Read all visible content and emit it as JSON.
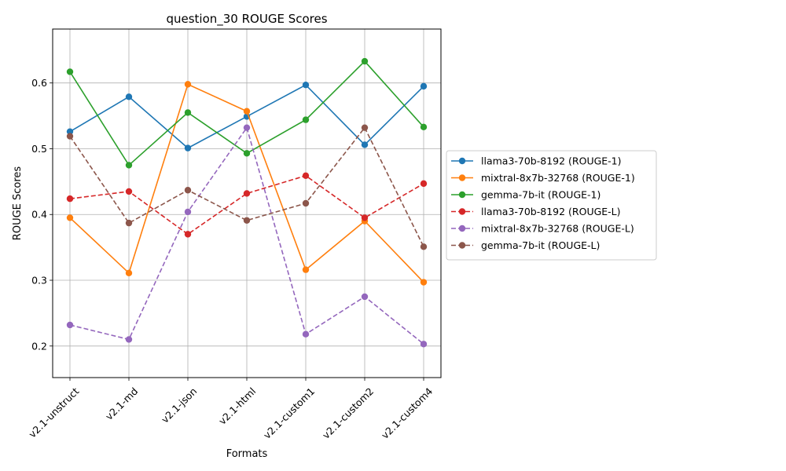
{
  "chart_data": {
    "type": "line",
    "title": "question_30 ROUGE Scores",
    "xlabel": "Formats",
    "ylabel": "ROUGE Scores",
    "categories": [
      "v2.1-unstruct",
      "v2.1-md",
      "v2.1-json",
      "v2.1-html",
      "v2.1-custom1",
      "v2.1-custom2",
      "v2.1-custom4"
    ],
    "ylim": [
      0.152,
      0.682
    ],
    "yticks": [
      0.2,
      0.3,
      0.4,
      0.5,
      0.6
    ],
    "ytick_labels": [
      "0.2",
      "0.3",
      "0.4",
      "0.5",
      "0.6"
    ],
    "grid": true,
    "legend_position": "right-outside",
    "series": [
      {
        "name": "llama3-70b-8192 (ROUGE-1)",
        "color": "#1f77b4",
        "dash": "solid",
        "values": [
          0.526,
          0.579,
          0.501,
          0.549,
          0.597,
          0.506,
          0.595
        ]
      },
      {
        "name": "mixtral-8x7b-32768 (ROUGE-1)",
        "color": "#ff7f0e",
        "dash": "solid",
        "values": [
          0.395,
          0.311,
          0.598,
          0.557,
          0.316,
          0.39,
          0.297
        ]
      },
      {
        "name": "gemma-7b-it (ROUGE-1)",
        "color": "#2ca02c",
        "dash": "solid",
        "values": [
          0.617,
          0.475,
          0.555,
          0.493,
          0.544,
          0.633,
          0.533
        ]
      },
      {
        "name": "llama3-70b-8192 (ROUGE-L)",
        "color": "#d62728",
        "dash": "dashed",
        "values": [
          0.424,
          0.435,
          0.37,
          0.432,
          0.459,
          0.395,
          0.447
        ]
      },
      {
        "name": "mixtral-8x7b-32768 (ROUGE-L)",
        "color": "#9467bd",
        "dash": "dashed",
        "values": [
          0.232,
          0.21,
          0.404,
          0.532,
          0.218,
          0.275,
          0.203
        ]
      },
      {
        "name": "gemma-7b-it (ROUGE-L)",
        "color": "#8c564b",
        "dash": "dashed",
        "values": [
          0.519,
          0.387,
          0.437,
          0.391,
          0.417,
          0.532,
          0.351
        ]
      }
    ]
  }
}
